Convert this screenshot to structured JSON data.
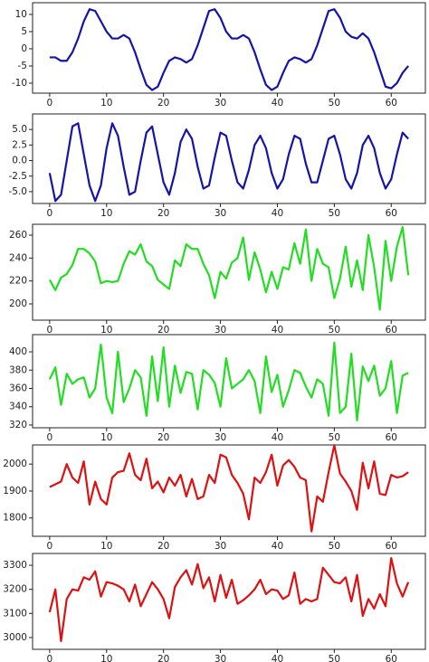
{
  "chart_data": [
    {
      "type": "line",
      "color": "#1414a8",
      "x": [
        0,
        1,
        2,
        3,
        4,
        5,
        6,
        7,
        8,
        9,
        10,
        11,
        12,
        13,
        14,
        15,
        16,
        17,
        18,
        19,
        20,
        21,
        22,
        23,
        24,
        25,
        26,
        27,
        28,
        29,
        30,
        31,
        32,
        33,
        34,
        35,
        36,
        37,
        38,
        39,
        40,
        41,
        42,
        43,
        44,
        45,
        46,
        47,
        48,
        49,
        50,
        51,
        52,
        53,
        54,
        55,
        56,
        57,
        58,
        59,
        60,
        61,
        62,
        63
      ],
      "values": [
        -2.5,
        -2.5,
        -3.5,
        -3.5,
        -1,
        3,
        8,
        11.5,
        11,
        8,
        5,
        3,
        3,
        4,
        3,
        -1,
        -6,
        -10.5,
        -12,
        -11,
        -7,
        -3.5,
        -2.5,
        -3,
        -4,
        -3,
        1,
        6,
        11,
        11.5,
        9,
        5,
        3,
        3,
        4,
        3,
        -1,
        -6,
        -10.5,
        -12,
        -11,
        -7,
        -3.5,
        -2.5,
        -3,
        -4,
        -3,
        1,
        6,
        11,
        11.5,
        9,
        5,
        3.5,
        3,
        4.5,
        3,
        -1,
        -6,
        -11,
        -11.5,
        -10,
        -7,
        -5
      ],
      "xlim": [
        -3,
        66
      ],
      "ylim": [
        -12.9,
        13.4
      ],
      "xticks": [
        0,
        10,
        20,
        30,
        40,
        50,
        60
      ],
      "yticks": [
        -10,
        -5,
        0,
        5,
        10
      ]
    },
    {
      "type": "line",
      "color": "#1414a8",
      "x": [
        0,
        1,
        2,
        3,
        4,
        5,
        6,
        7,
        8,
        9,
        10,
        11,
        12,
        13,
        14,
        15,
        16,
        17,
        18,
        19,
        20,
        21,
        22,
        23,
        24,
        25,
        26,
        27,
        28,
        29,
        30,
        31,
        32,
        33,
        34,
        35,
        36,
        37,
        38,
        39,
        40,
        41,
        42,
        43,
        44,
        45,
        46,
        47,
        48,
        49,
        50,
        51,
        52,
        53,
        54,
        55,
        56,
        57,
        58,
        59,
        60,
        61,
        62,
        63
      ],
      "values": [
        -2,
        -6.5,
        -5.5,
        0,
        5.5,
        6,
        1,
        -4,
        -6.5,
        -4,
        2,
        6,
        4,
        -1,
        -5.5,
        -5,
        0,
        4.5,
        5.5,
        1,
        -3.5,
        -5.5,
        -2,
        3,
        5,
        3.5,
        -1,
        -4.5,
        -4,
        0.5,
        4.5,
        4,
        0,
        -3.5,
        -4.5,
        -1.5,
        2.5,
        4,
        2,
        -2,
        -4.5,
        -3,
        1,
        4,
        3.5,
        -0.5,
        -3.5,
        -3.5,
        0,
        3.5,
        4,
        1,
        -3,
        -4.5,
        -2,
        2.5,
        4,
        2,
        -2,
        -4.5,
        -3,
        1,
        4.5,
        3.5
      ],
      "xlim": [
        -3,
        66
      ],
      "ylim": [
        -6.9,
        7.5
      ],
      "xticks": [
        0,
        10,
        20,
        30,
        40,
        50,
        60
      ],
      "yticks": [
        {
          "value": -5,
          "label": "-5.0"
        },
        {
          "value": -2.5,
          "label": "-2.5"
        },
        {
          "value": 0,
          "label": "0.0"
        },
        {
          "value": 2.5,
          "label": "2.5"
        },
        {
          "value": 5,
          "label": "5.0"
        }
      ]
    },
    {
      "type": "line",
      "color": "#22dd22",
      "x": [
        0,
        1,
        2,
        3,
        4,
        5,
        6,
        7,
        8,
        9,
        10,
        11,
        12,
        13,
        14,
        15,
        16,
        17,
        18,
        19,
        20,
        21,
        22,
        23,
        24,
        25,
        26,
        27,
        28,
        29,
        30,
        31,
        32,
        33,
        34,
        35,
        36,
        37,
        38,
        39,
        40,
        41,
        42,
        43,
        44,
        45,
        46,
        47,
        48,
        49,
        50,
        51,
        52,
        53,
        54,
        55,
        56,
        57,
        58,
        59,
        60,
        61,
        62,
        63
      ],
      "values": [
        221,
        212,
        223,
        226,
        234,
        248,
        248,
        244,
        237,
        218,
        220,
        219,
        220,
        235,
        246,
        243,
        252,
        237,
        233,
        221,
        217,
        213,
        238,
        233,
        252,
        248,
        248,
        235,
        225,
        205,
        228,
        222,
        236,
        240,
        258,
        221,
        245,
        230,
        210,
        228,
        213,
        232,
        230,
        253,
        235,
        265,
        220,
        248,
        235,
        232,
        205,
        222,
        250,
        215,
        238,
        212,
        260,
        232,
        195,
        255,
        220,
        250,
        267,
        225
      ],
      "xlim": [
        -3,
        66
      ],
      "ylim": [
        185.8,
        269.5
      ],
      "xticks": [
        0,
        10,
        20,
        30,
        40,
        50,
        60
      ],
      "yticks": [
        200,
        220,
        240,
        260
      ]
    },
    {
      "type": "line",
      "color": "#22dd22",
      "x": [
        0,
        1,
        2,
        3,
        4,
        5,
        6,
        7,
        8,
        9,
        10,
        11,
        12,
        13,
        14,
        15,
        16,
        17,
        18,
        19,
        20,
        21,
        22,
        23,
        24,
        25,
        26,
        27,
        28,
        29,
        30,
        31,
        32,
        33,
        34,
        35,
        36,
        37,
        38,
        39,
        40,
        41,
        42,
        43,
        44,
        45,
        46,
        47,
        48,
        49,
        50,
        51,
        52,
        53,
        54,
        55,
        56,
        57,
        58,
        59,
        60,
        61,
        62,
        63
      ],
      "values": [
        370,
        383,
        342,
        376,
        365,
        370,
        372,
        350,
        360,
        408,
        350,
        333,
        400,
        345,
        360,
        380,
        372,
        330,
        395,
        346,
        405,
        340,
        385,
        355,
        378,
        376,
        337,
        380,
        375,
        366,
        340,
        393,
        360,
        365,
        370,
        380,
        368,
        333,
        395,
        356,
        375,
        340,
        358,
        380,
        377,
        362,
        350,
        370,
        365,
        330,
        410,
        333,
        340,
        398,
        325,
        384,
        368,
        385,
        352,
        360,
        390,
        333,
        374,
        377
      ],
      "xlim": [
        -3,
        66
      ],
      "ylim": [
        317,
        418.8
      ],
      "xticks": [
        0,
        10,
        20,
        30,
        40,
        50,
        60
      ],
      "yticks": [
        320,
        340,
        360,
        380,
        400
      ]
    },
    {
      "type": "line",
      "color": "#dd1111",
      "x": [
        0,
        1,
        2,
        3,
        4,
        5,
        6,
        7,
        8,
        9,
        10,
        11,
        12,
        13,
        14,
        15,
        16,
        17,
        18,
        19,
        20,
        21,
        22,
        23,
        24,
        25,
        26,
        27,
        28,
        29,
        30,
        31,
        32,
        33,
        34,
        35,
        36,
        37,
        38,
        39,
        40,
        41,
        42,
        43,
        44,
        45,
        46,
        47,
        48,
        49,
        50,
        51,
        52,
        53,
        54,
        55,
        56,
        57,
        58,
        59,
        60,
        61,
        62,
        63
      ],
      "values": [
        1915,
        1925,
        1935,
        2000,
        1950,
        1930,
        2010,
        1850,
        1935,
        1870,
        1850,
        1950,
        1970,
        1975,
        2040,
        1960,
        1940,
        2020,
        1910,
        1935,
        1895,
        1950,
        1920,
        1960,
        1880,
        1945,
        1870,
        1880,
        1960,
        1930,
        2035,
        2025,
        1960,
        1930,
        1890,
        1795,
        1950,
        1930,
        1970,
        2035,
        1920,
        1995,
        2015,
        1990,
        1950,
        1940,
        1750,
        1880,
        1860,
        1970,
        2070,
        1965,
        1935,
        1900,
        1830,
        2005,
        1910,
        2010,
        1890,
        1885,
        1960,
        1950,
        1955,
        1970
      ],
      "xlim": [
        -3,
        66
      ],
      "ylim": [
        1732,
        2071
      ],
      "xticks": [
        0,
        10,
        20,
        30,
        40,
        50,
        60
      ],
      "yticks": [
        1800,
        1900,
        2000
      ]
    },
    {
      "type": "line",
      "color": "#dd1111",
      "x": [
        0,
        1,
        2,
        3,
        4,
        5,
        6,
        7,
        8,
        9,
        10,
        11,
        12,
        13,
        14,
        15,
        16,
        17,
        18,
        19,
        20,
        21,
        22,
        23,
        24,
        25,
        26,
        27,
        28,
        29,
        30,
        31,
        32,
        33,
        34,
        35,
        36,
        37,
        38,
        39,
        40,
        41,
        42,
        43,
        44,
        45,
        46,
        47,
        48,
        49,
        50,
        51,
        52,
        53,
        54,
        55,
        56,
        57,
        58,
        59,
        60,
        61,
        62,
        63
      ],
      "values": [
        3105,
        3200,
        2985,
        3160,
        3200,
        3195,
        3250,
        3240,
        3275,
        3170,
        3230,
        3225,
        3215,
        3200,
        3150,
        3220,
        3130,
        3180,
        3230,
        3200,
        3160,
        3080,
        3210,
        3250,
        3280,
        3220,
        3305,
        3205,
        3250,
        3150,
        3260,
        3165,
        3240,
        3140,
        3155,
        3175,
        3200,
        3240,
        3180,
        3200,
        3195,
        3160,
        3175,
        3270,
        3140,
        3160,
        3150,
        3160,
        3290,
        3260,
        3230,
        3225,
        3250,
        3150,
        3260,
        3090,
        3160,
        3120,
        3180,
        3130,
        3330,
        3225,
        3170,
        3230
      ],
      "xlim": [
        -3,
        66
      ],
      "ylim": [
        2951,
        3349
      ],
      "xticks": [
        0,
        10,
        20,
        30,
        40,
        50,
        60
      ],
      "yticks": [
        3000,
        3100,
        3200,
        3300
      ]
    }
  ]
}
